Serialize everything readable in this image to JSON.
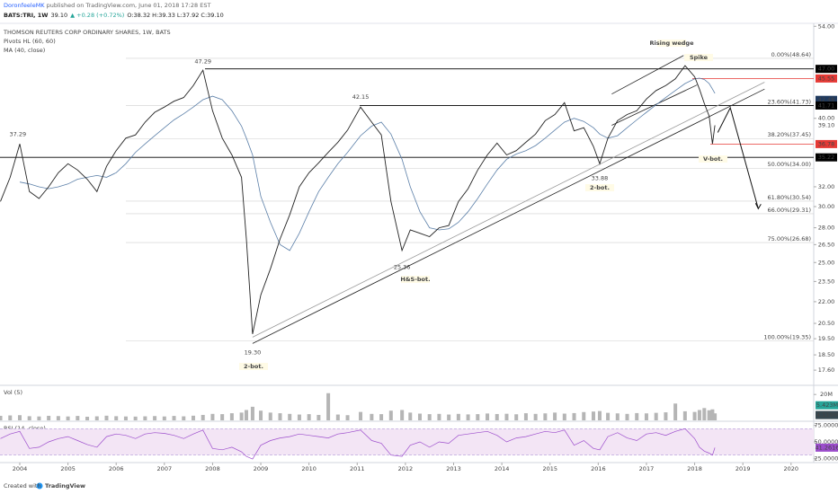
{
  "header": {
    "author": "DoronfeeleMK",
    "published": "published on TradingView.com, June 01, 2018 17:28 EST"
  },
  "symbol_line": {
    "symbol": "BATS:TRI, 1W",
    "last": "39.10",
    "change": "▲ +0.28 (+0.72%)",
    "ohlc": "O:38.32 H:39.33 L:37.92 C:39.10"
  },
  "footer": {
    "created": "Created with",
    "brand": "TradingView"
  },
  "chart_data": [
    {
      "type": "line",
      "title": "THOMSON REUTERS CORP ORDINARY SHARES, 1W, BATS",
      "indicator": "Pivots HL (60, 60)",
      "log_scale": true,
      "xlim": [
        2003.59,
        2020.47
      ],
      "ylim": [
        16.8,
        54.2
      ],
      "yticks": [
        {
          "value": 54,
          "label": "54.00"
        },
        {
          "value": 40,
          "label": "40.00"
        },
        {
          "value": 32,
          "label": "32.00"
        },
        {
          "value": 30,
          "label": "30.00"
        },
        {
          "value": 28,
          "label": "28.00"
        },
        {
          "value": 26.5,
          "label": "26.50"
        },
        {
          "value": 25,
          "label": "25.00"
        },
        {
          "value": 23.5,
          "label": "23.50"
        },
        {
          "value": 22,
          "label": "22.00"
        },
        {
          "value": 20.5,
          "label": "20.50"
        },
        {
          "value": 19.5,
          "label": "19.50"
        },
        {
          "value": 18.5,
          "label": "18.50"
        },
        {
          "value": 17.6,
          "label": "17.60"
        }
      ],
      "x": [
        2003.6,
        2003.8,
        2004.0,
        2004.2,
        2004.4,
        2004.6,
        2004.8,
        2005.0,
        2005.2,
        2005.4,
        2005.6,
        2005.8,
        2006.0,
        2006.2,
        2006.4,
        2006.6,
        2006.8,
        2007.0,
        2007.2,
        2007.4,
        2007.6,
        2007.8,
        2008.0,
        2008.2,
        2008.4,
        2008.6,
        2008.7,
        2008.83,
        2009.0,
        2009.2,
        2009.4,
        2009.6,
        2009.8,
        2010.0,
        2010.2,
        2010.4,
        2010.6,
        2010.8,
        2011.07,
        2011.3,
        2011.5,
        2011.7,
        2011.93,
        2012.1,
        2012.3,
        2012.5,
        2012.7,
        2012.9,
        2013.1,
        2013.3,
        2013.5,
        2013.7,
        2013.9,
        2014.1,
        2014.3,
        2014.5,
        2014.7,
        2014.9,
        2015.1,
        2015.3,
        2015.5,
        2015.7,
        2015.9,
        2016.03,
        2016.2,
        2016.4,
        2016.6,
        2016.8,
        2017.0,
        2017.2,
        2017.4,
        2017.6,
        2017.8,
        2018.0,
        2018.1,
        2018.2,
        2018.3,
        2018.37,
        2018.42
      ],
      "series": [
        {
          "color": "#222222",
          "values": [
            30.5,
            33.0,
            36.8,
            31.5,
            30.8,
            32.0,
            33.5,
            34.5,
            33.8,
            32.8,
            31.5,
            34.2,
            36.0,
            37.5,
            37.9,
            39.5,
            40.8,
            41.5,
            42.3,
            42.8,
            44.5,
            46.8,
            41.0,
            37.5,
            35.5,
            33.0,
            27.0,
            19.8,
            22.5,
            24.5,
            27.0,
            29.2,
            32.0,
            33.5,
            34.6,
            35.8,
            37.0,
            38.5,
            41.5,
            39.5,
            37.9,
            30.5,
            26.0,
            27.8,
            27.5,
            27.2,
            28.0,
            28.2,
            30.5,
            31.8,
            33.8,
            35.5,
            36.9,
            35.5,
            36.0,
            37.0,
            38.0,
            39.7,
            40.5,
            42.1,
            38.4,
            38.8,
            36.5,
            34.5,
            37.5,
            39.7,
            40.5,
            41.0,
            42.6,
            43.8,
            44.5,
            45.5,
            47.5,
            45.8,
            44.0,
            42.0,
            40.3,
            36.8,
            39.1
          ]
        },
        {
          "name": "MA (40, close)",
          "color": "#5b7fa8",
          "values": [
            null,
            null,
            32.5,
            32.3,
            32.0,
            31.8,
            32.0,
            32.3,
            32.8,
            33.0,
            33.2,
            33.0,
            33.5,
            34.5,
            35.8,
            36.8,
            37.8,
            38.8,
            39.8,
            40.6,
            41.5,
            42.5,
            43.0,
            42.5,
            41.0,
            39.0,
            37.5,
            35.5,
            31.0,
            28.5,
            26.5,
            26.0,
            27.5,
            29.5,
            31.5,
            33.0,
            34.5,
            35.8,
            37.8,
            39.0,
            39.5,
            38.0,
            35.0,
            32.0,
            29.5,
            28.0,
            27.8,
            27.9,
            28.5,
            29.5,
            30.8,
            32.3,
            33.8,
            35.0,
            35.6,
            36.0,
            36.6,
            37.5,
            38.5,
            39.5,
            40.0,
            39.6,
            38.8,
            38.0,
            37.5,
            37.8,
            38.8,
            39.8,
            40.8,
            41.8,
            42.8,
            43.8,
            44.8,
            45.5,
            45.6,
            45.4,
            44.8,
            44.0,
            43.4
          ]
        }
      ],
      "pivots": [
        {
          "x": 2003.96,
          "value": 37.29,
          "label": "37.29"
        },
        {
          "x": 2007.8,
          "value": 47.29,
          "label": "47.29"
        },
        {
          "x": 2008.83,
          "value": 19.3,
          "label": "19.30"
        },
        {
          "x": 2011.07,
          "value": 42.15,
          "label": "42.15"
        },
        {
          "x": 2011.93,
          "value": 25.36,
          "label": "25.36"
        },
        {
          "x": 2016.03,
          "value": 33.88,
          "label": "33.88"
        }
      ],
      "fib_levels": [
        {
          "value": 48.64,
          "label": "0.00%(48.64)"
        },
        {
          "value": 41.73,
          "label": "23.60%(41.73)"
        },
        {
          "value": 37.45,
          "label": "38.20%(37.45)"
        },
        {
          "value": 34.0,
          "label": "50.00%(34.00)"
        },
        {
          "value": 30.54,
          "label": "61.80%(30.54)"
        },
        {
          "value": 29.31,
          "label": "66.00%(29.31)"
        },
        {
          "value": 26.68,
          "label": "75.00%(26.68)"
        },
        {
          "value": 19.35,
          "label": "100.00%(19.35)"
        }
      ],
      "price_labels": [
        {
          "value": 47.0,
          "label": "47.00",
          "color": "#000000",
          "text_color": "#ffffff"
        },
        {
          "value": 45.55,
          "label": "45.55",
          "color": "#e53935",
          "text_color": "#ffffff"
        },
        {
          "value": 42.48,
          "label": "42.48",
          "color": "#1f3a5f",
          "text_color": "#ffffff"
        },
        {
          "value": 41.71,
          "label": "41.71",
          "color": "#000000",
          "text_color": "#ffffff"
        },
        {
          "value": 39.1,
          "label": "39.10",
          "color": "#ffffff",
          "text_color": "#333333"
        },
        {
          "value": 36.78,
          "label": "36.78",
          "color": "#e53935",
          "text_color": "#ffffff"
        },
        {
          "value": 35.22,
          "label": "35.22",
          "color": "#000000",
          "text_color": "#ffffff"
        }
      ],
      "trendlines": [
        [
          [
            2008.83,
            19.2
          ],
          [
            2019.45,
            44.0
          ]
        ],
        [
          [
            2008.83,
            19.6
          ],
          [
            2019.45,
            45.0
          ]
        ],
        [
          [
            2016.28,
            43.3
          ],
          [
            2017.77,
            49.1
          ]
        ],
        [
          [
            2016.28,
            39.1
          ],
          [
            2018.05,
            44.6
          ]
        ]
      ],
      "arrow": [
        [
          2018.48,
          38.2
        ],
        [
          2018.74,
          41.4
        ],
        [
          2019.32,
          29.8
        ]
      ],
      "annotations": [
        "Rising wedge",
        "Spike",
        "2-bot.",
        "H&S-bot.",
        "2-bot.",
        "V-bot."
      ]
    },
    {
      "type": "bar",
      "title": "Vol (5)",
      "xlim": [
        2003.59,
        2020.47
      ],
      "ylim": [
        0,
        25000000
      ],
      "yticks": [
        {
          "value": 20000000,
          "label": "20M"
        }
      ],
      "x": [
        2003.6,
        2003.8,
        2004.0,
        2004.2,
        2004.4,
        2004.6,
        2004.8,
        2005.0,
        2005.2,
        2005.4,
        2005.6,
        2005.8,
        2006.0,
        2006.2,
        2006.4,
        2006.6,
        2006.8,
        2007.0,
        2007.2,
        2007.4,
        2007.6,
        2007.8,
        2008.0,
        2008.2,
        2008.4,
        2008.6,
        2008.7,
        2008.83,
        2009.0,
        2009.2,
        2009.4,
        2009.6,
        2009.8,
        2010.0,
        2010.2,
        2010.4,
        2010.6,
        2010.8,
        2011.07,
        2011.3,
        2011.5,
        2011.7,
        2011.93,
        2012.1,
        2012.3,
        2012.5,
        2012.7,
        2012.9,
        2013.1,
        2013.3,
        2013.5,
        2013.7,
        2013.9,
        2014.1,
        2014.3,
        2014.5,
        2014.7,
        2014.9,
        2015.1,
        2015.3,
        2015.5,
        2015.7,
        2015.9,
        2016.03,
        2016.2,
        2016.4,
        2016.6,
        2016.8,
        2017.0,
        2017.2,
        2017.4,
        2017.6,
        2017.8,
        2018.0,
        2018.1,
        2018.2,
        2018.3,
        2018.37,
        2018.42
      ],
      "color": "#b5b5b5",
      "values": [
        3500000,
        3800000,
        4000000,
        3200000,
        3000000,
        3500000,
        3300000,
        3000000,
        3400000,
        2800000,
        3100000,
        3600000,
        3200000,
        3000000,
        2900000,
        3100000,
        3300000,
        3000000,
        3400000,
        3100000,
        3600000,
        4200000,
        5000000,
        4800000,
        5500000,
        6000000,
        8000000,
        10500000,
        7500000,
        6000000,
        5500000,
        5000000,
        4500000,
        4800000,
        4200000,
        21000000,
        4500000,
        4000000,
        6500000,
        5000000,
        4800000,
        7500000,
        8000000,
        6000000,
        5200000,
        4800000,
        5000000,
        4500000,
        5000000,
        4600000,
        4800000,
        5300000,
        4900000,
        5100000,
        4700000,
        5500000,
        5000000,
        5400000,
        6000000,
        5200000,
        5600000,
        6400000,
        6800000,
        7200000,
        5800000,
        5400000,
        5000000,
        5600000,
        5400000,
        5800000,
        6200000,
        13000000,
        7000000,
        6500000,
        8000000,
        9500000,
        7800000,
        8500000,
        5423000
      ],
      "last_labels": [
        {
          "value": 5423000,
          "label": "5.423M",
          "color": "#26a69a"
        },
        {
          "value": 4119000,
          "label": "4.119M",
          "color": "#37474f"
        }
      ]
    },
    {
      "type": "line",
      "title": "RSI (14, close)",
      "xlim": [
        2003.59,
        2020.47
      ],
      "ylim": [
        20,
        80
      ],
      "yticks": [
        {
          "value": 75,
          "label": "75.0000"
        },
        {
          "value": 50,
          "label": "50.0000"
        },
        {
          "value": 25,
          "label": "25.0000"
        }
      ],
      "band": [
        30,
        70
      ],
      "band_color": "#f3e5f5",
      "xticks": [
        2004,
        2005,
        2006,
        2007,
        2008,
        2009,
        2010,
        2011,
        2012,
        2013,
        2014,
        2015,
        2016,
        2017,
        2018,
        2019,
        2020
      ],
      "x": [
        2003.6,
        2003.8,
        2004.0,
        2004.2,
        2004.4,
        2004.6,
        2004.8,
        2005.0,
        2005.2,
        2005.4,
        2005.6,
        2005.8,
        2006.0,
        2006.2,
        2006.4,
        2006.6,
        2006.8,
        2007.0,
        2007.2,
        2007.4,
        2007.6,
        2007.8,
        2008.0,
        2008.2,
        2008.4,
        2008.6,
        2008.7,
        2008.83,
        2009.0,
        2009.2,
        2009.4,
        2009.6,
        2009.8,
        2010.0,
        2010.2,
        2010.4,
        2010.6,
        2010.8,
        2011.07,
        2011.3,
        2011.5,
        2011.7,
        2011.93,
        2012.1,
        2012.3,
        2012.5,
        2012.7,
        2012.9,
        2013.1,
        2013.3,
        2013.5,
        2013.7,
        2013.9,
        2014.1,
        2014.3,
        2014.5,
        2014.7,
        2014.9,
        2015.1,
        2015.3,
        2015.5,
        2015.7,
        2015.9,
        2016.03,
        2016.2,
        2016.4,
        2016.6,
        2016.8,
        2017.0,
        2017.2,
        2017.4,
        2017.6,
        2017.8,
        2018.0,
        2018.1,
        2018.2,
        2018.3,
        2018.37,
        2018.42
      ],
      "series": [
        {
          "color": "#9c4dcc",
          "values": [
            55,
            62,
            66,
            40,
            42,
            50,
            55,
            58,
            52,
            46,
            42,
            58,
            62,
            60,
            55,
            62,
            64,
            63,
            60,
            55,
            62,
            68,
            40,
            38,
            42,
            35,
            28,
            24,
            45,
            52,
            56,
            58,
            62,
            60,
            58,
            56,
            62,
            64,
            68,
            52,
            48,
            30,
            28,
            45,
            50,
            42,
            50,
            48,
            60,
            62,
            64,
            66,
            60,
            50,
            56,
            58,
            62,
            66,
            64,
            68,
            45,
            52,
            40,
            38,
            58,
            64,
            56,
            52,
            62,
            64,
            60,
            66,
            70,
            55,
            42,
            36,
            33,
            30,
            41.2616
          ]
        }
      ]
    }
  ]
}
